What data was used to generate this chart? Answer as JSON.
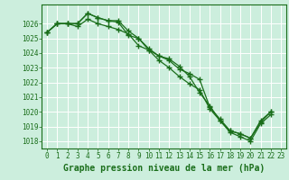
{
  "title": "Graphe pression niveau de la mer (hPa)",
  "bg_color": "#cceedd",
  "grid_color": "#ffffff",
  "line_color": "#1a6e1a",
  "marker_color": "#1a6e1a",
  "series": [
    [
      1025.4,
      1026.0,
      1026.0,
      1026.0,
      1026.7,
      1026.4,
      1026.2,
      1026.1,
      1025.2,
      1025.0,
      1024.2,
      1023.8,
      1023.5,
      1022.9,
      1022.6,
      1022.2,
      1020.3,
      1019.5,
      1018.7,
      1018.5,
      1018.2,
      1019.3,
      1020.0,
      null
    ],
    [
      1025.4,
      1026.0,
      1026.0,
      1026.0,
      1026.7,
      1026.4,
      1026.2,
      1026.2,
      1025.5,
      1025.0,
      1024.3,
      1023.8,
      1023.6,
      1023.1,
      1022.4,
      1021.3,
      1020.4,
      1019.4,
      1018.7,
      1018.5,
      1018.2,
      1019.4,
      1020.0,
      null
    ],
    [
      1025.4,
      1026.0,
      1026.0,
      1025.8,
      1026.3,
      1026.0,
      1025.8,
      1025.6,
      1025.3,
      1024.5,
      1024.2,
      1023.5,
      1023.0,
      1022.4,
      1021.9,
      1021.5,
      1020.2,
      1019.4,
      1018.6,
      1018.3,
      1018.0,
      1019.2,
      1019.8,
      null
    ]
  ],
  "xlim_min": -0.5,
  "xlim_max": 23.5,
  "ylim_min": 1017.5,
  "ylim_max": 1027.3,
  "yticks": [
    1018,
    1019,
    1020,
    1021,
    1022,
    1023,
    1024,
    1025,
    1026
  ],
  "xticks": [
    0,
    1,
    2,
    3,
    4,
    5,
    6,
    7,
    8,
    9,
    10,
    11,
    12,
    13,
    14,
    15,
    16,
    17,
    18,
    19,
    20,
    21,
    22,
    23
  ],
  "tick_fontsize": 5.5,
  "title_fontsize": 7.0
}
